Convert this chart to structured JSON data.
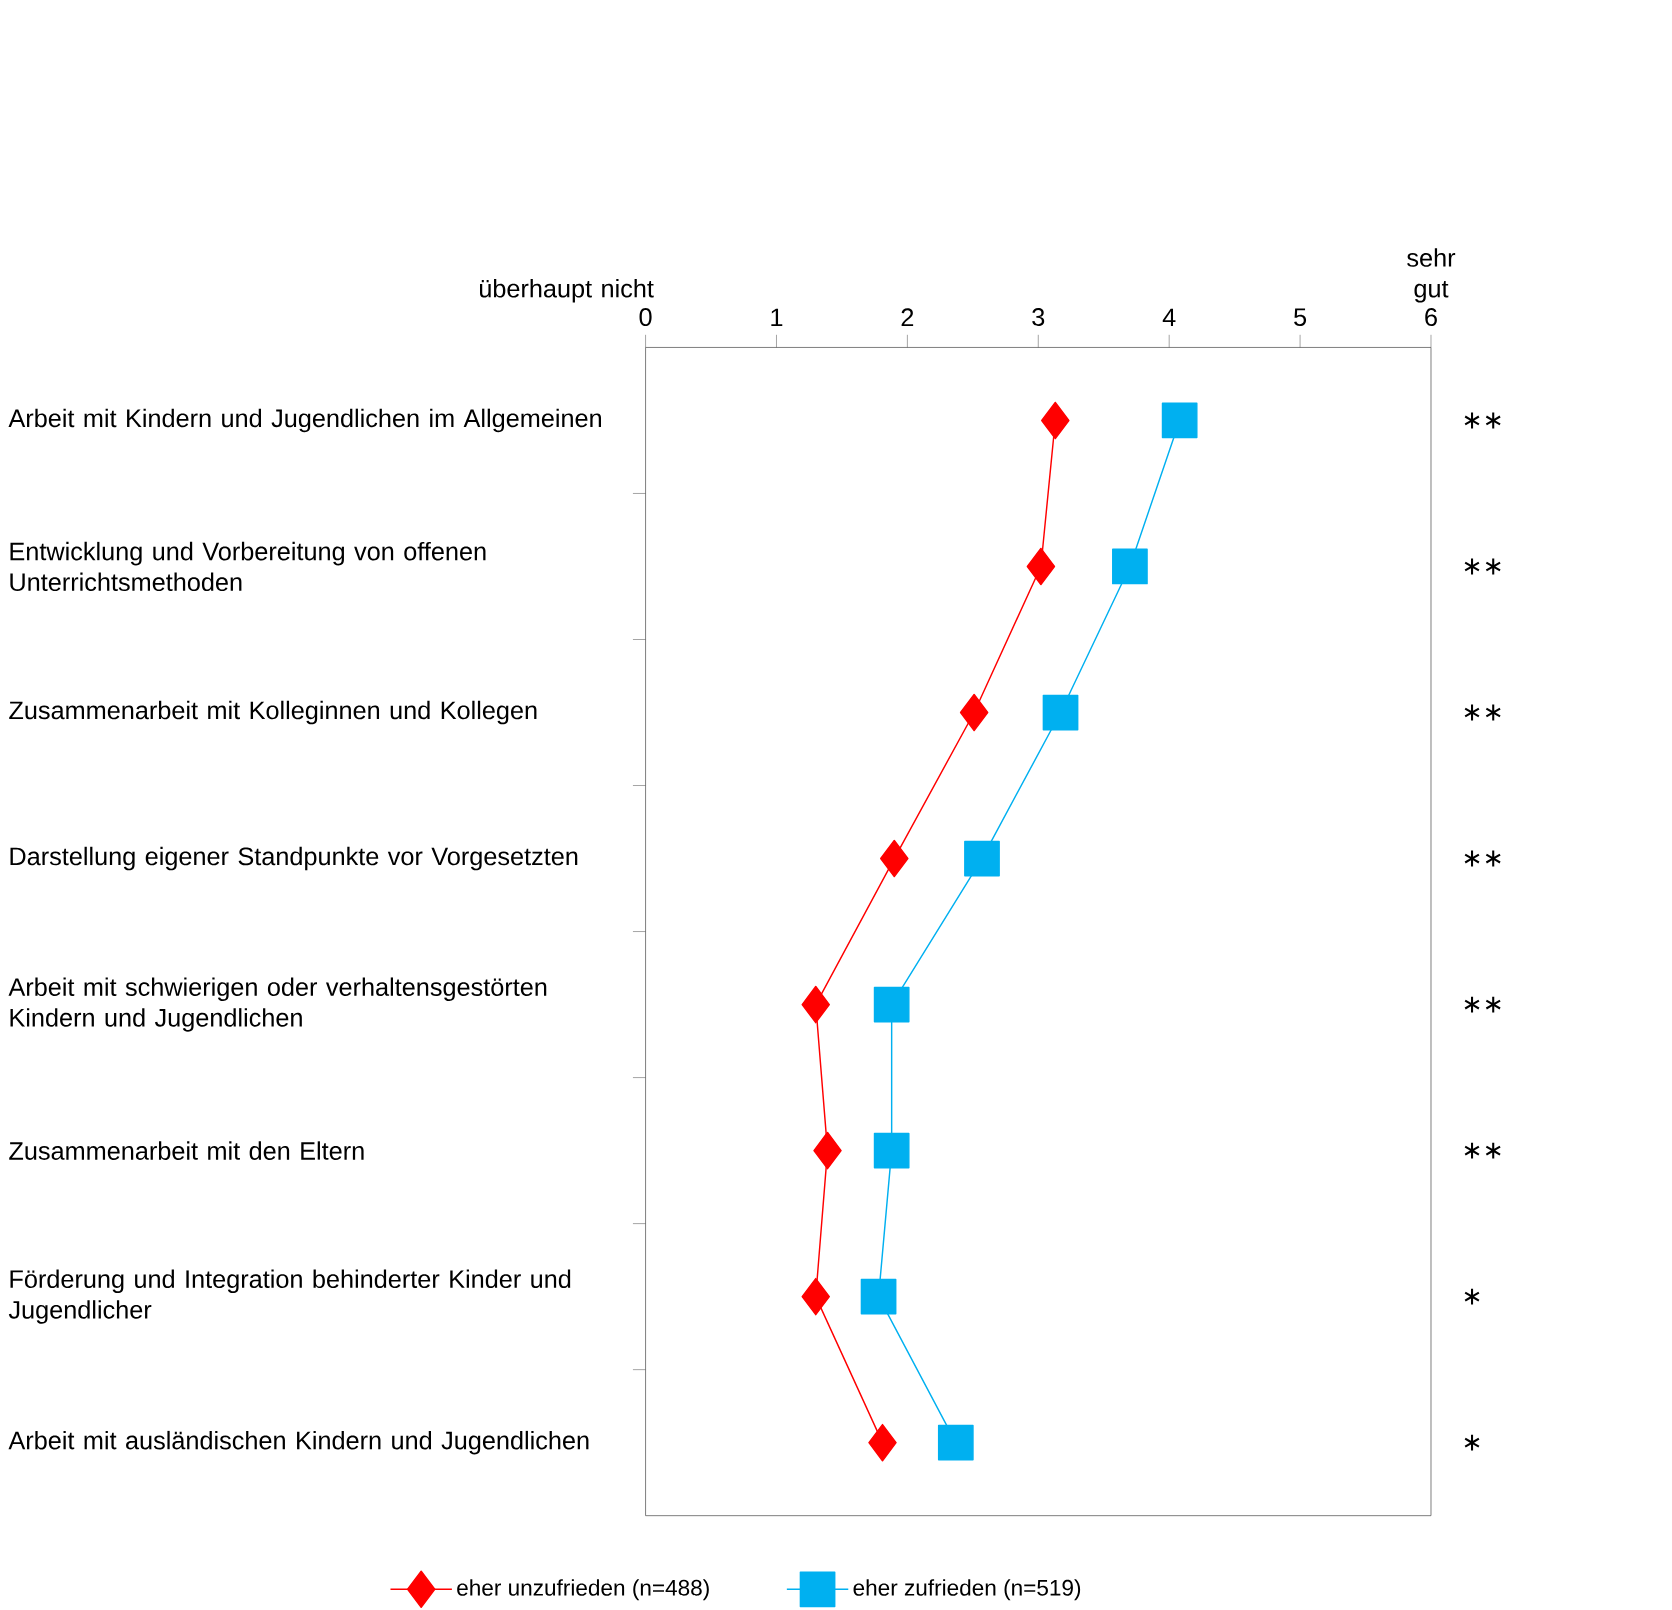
{
  "chart_data": {
    "type": "line",
    "orientation": "horizontal",
    "categories": [
      "Arbeit mit Kindern und Jugendlichen im Allgemeinen",
      "Entwicklung und Vorbereitung von offenen Unterrichtsmethoden",
      "Zusammenarbeit mit Kolleginnen und Kollegen",
      "Darstellung eigener Standpunkte vor Vorgesetzten",
      "Arbeit mit schwierigen oder verhaltensgestörten Kindern und Jugendlichen",
      "Zusammenarbeit mit den Eltern",
      "Förderung und Integration behinderter Kinder und Jugendlicher",
      "Arbeit mit ausländischen Kindern und Jugendlichen"
    ],
    "series": [
      {
        "name": "eher unzufrieden (n=488)",
        "color": "#ff0000",
        "marker": "diamond",
        "values": [
          3.13,
          3.02,
          2.51,
          1.9,
          1.3,
          1.39,
          1.3,
          1.81
        ]
      },
      {
        "name": "eher zufrieden (n=519)",
        "color": "#00b0f0",
        "marker": "square",
        "values": [
          4.08,
          3.7,
          3.17,
          2.57,
          1.88,
          1.88,
          1.78,
          2.37
        ]
      }
    ],
    "xlim": [
      0,
      6
    ],
    "xticks": [
      0,
      1,
      2,
      3,
      4,
      5,
      6
    ],
    "legend": "bottom",
    "annotations": [
      "überhaupt nicht",
      "sehr gut",
      "∗∗",
      "∗∗",
      "∗∗",
      "∗∗",
      "∗∗",
      "∗∗",
      "∗",
      "∗"
    ]
  }
}
